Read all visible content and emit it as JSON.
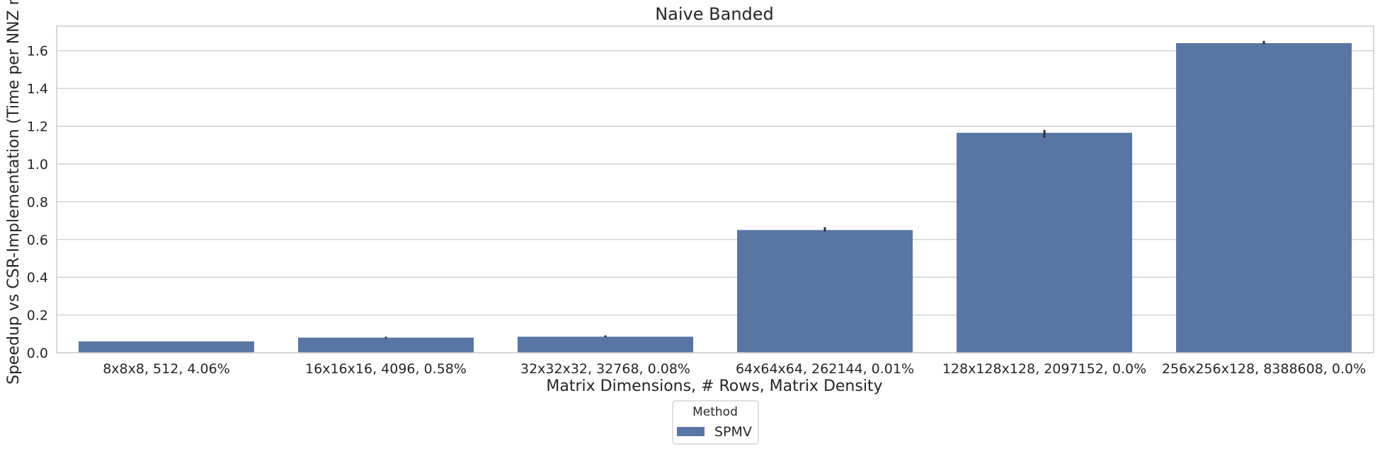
{
  "chart_data": {
    "type": "bar",
    "title": "Naive Banded",
    "xlabel": "Matrix Dimensions, # Rows, Matrix Density",
    "ylabel": "Speedup vs CSR-Implementation (Time per NNZ m",
    "categories": [
      "8x8x8, 512, 4.06%",
      "16x16x16, 4096, 0.58%",
      "32x32x32, 32768, 0.08%",
      "64x64x64, 262144, 0.01%",
      "128x128x128, 2097152, 0.0%",
      "256x256x128, 8388608, 0.0%"
    ],
    "series": [
      {
        "name": "SPMV",
        "values": [
          0.06,
          0.08,
          0.085,
          0.65,
          1.165,
          1.64
        ],
        "error_low": [
          0.06,
          0.077,
          0.082,
          0.643,
          1.14,
          1.635
        ],
        "error_high": [
          0.06,
          0.085,
          0.092,
          0.665,
          1.18,
          1.652
        ],
        "color": "#5875a4"
      }
    ],
    "ylim": [
      0,
      1.73
    ],
    "yticks": [
      "0.0",
      "0.2",
      "0.4",
      "0.6",
      "0.8",
      "1.0",
      "1.2",
      "1.4",
      "1.6"
    ],
    "ytick_values": [
      0,
      0.2,
      0.4,
      0.6,
      0.8,
      1.0,
      1.2,
      1.4,
      1.6
    ],
    "grid": true,
    "legend": {
      "title": "Method",
      "placement": "bottom-center"
    }
  },
  "colors": {
    "bar": "#5875a4",
    "grid": "#cccccc",
    "spine": "#cccccc",
    "error_bar": "#2d2d2d",
    "text": "#262626"
  }
}
